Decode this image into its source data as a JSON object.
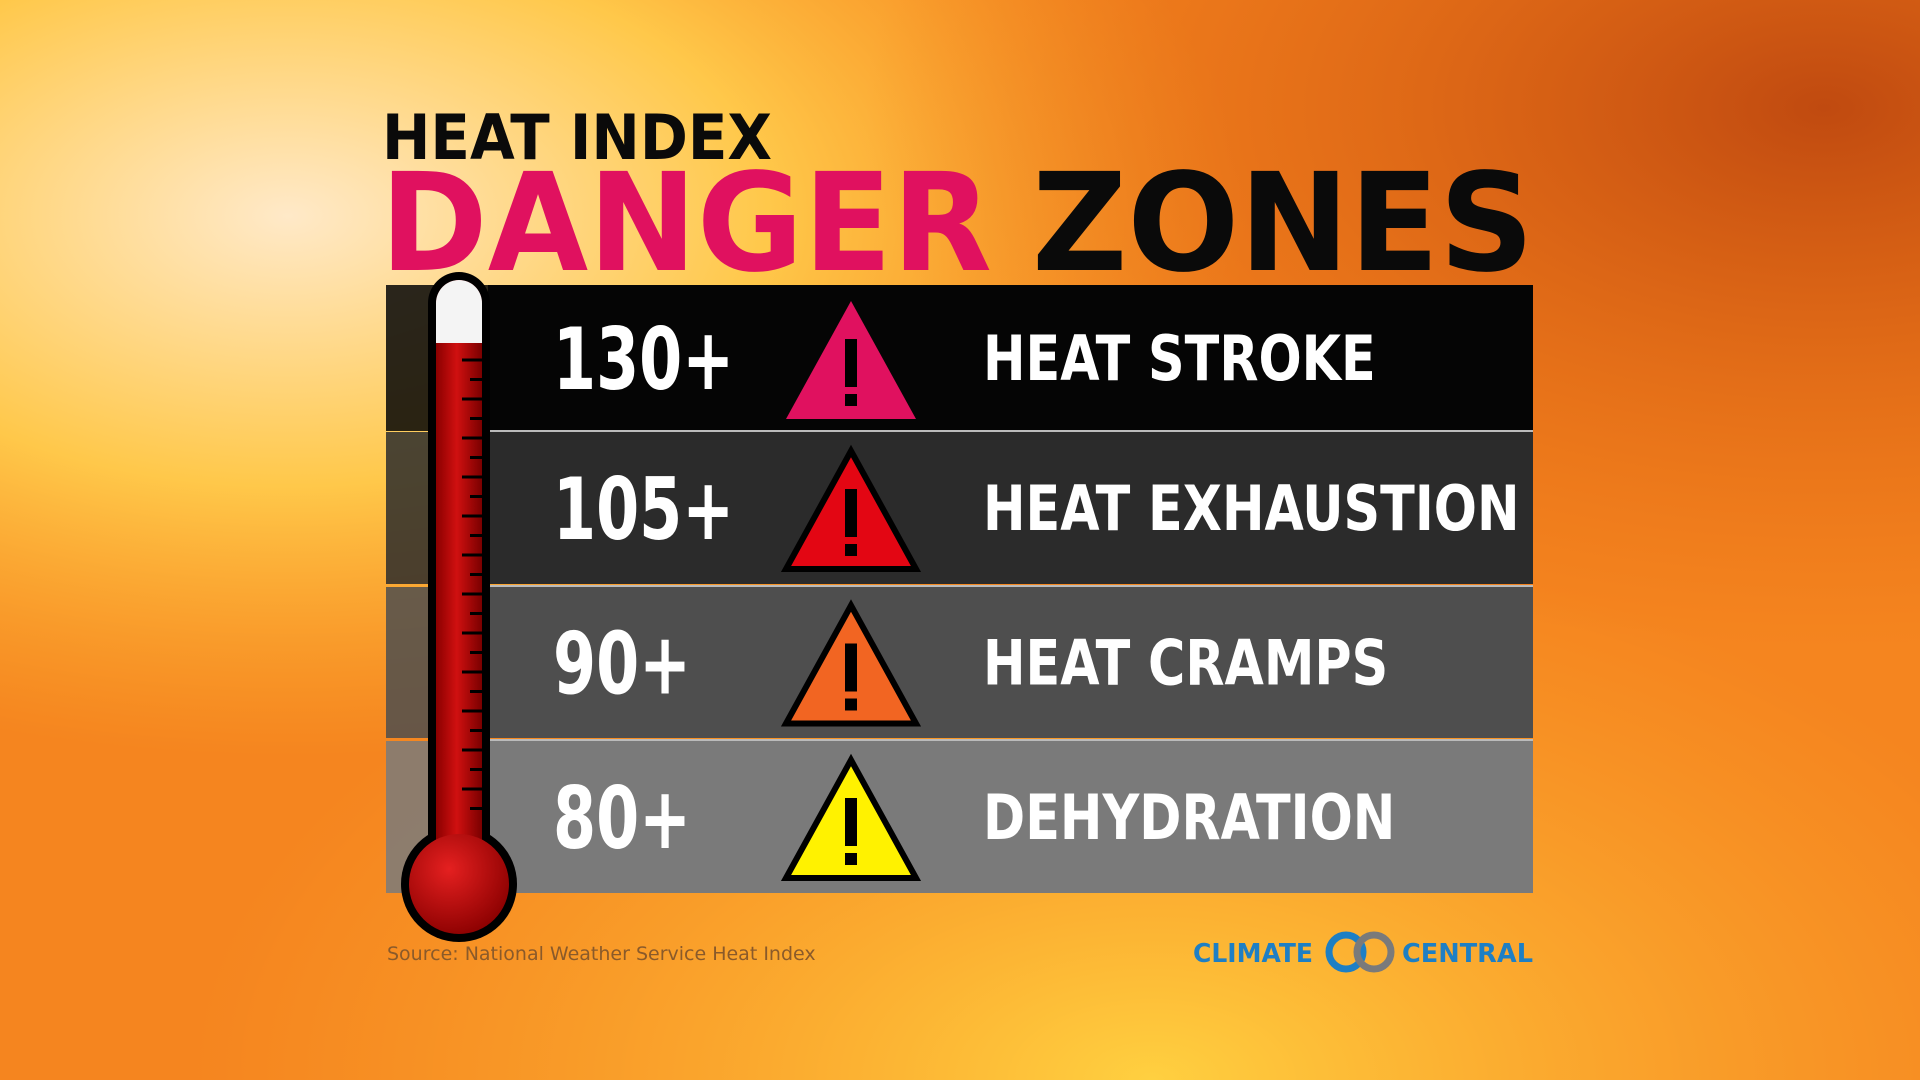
{
  "header": {
    "line1": "HEAT INDEX",
    "line2a": "DANGER",
    "line2b": "ZONES"
  },
  "rows": [
    {
      "threshold": "130+",
      "label": "HEAT STROKE",
      "color": "#e0115f",
      "band": "#050505"
    },
    {
      "threshold": "105+",
      "label": "HEAT EXHAUSTION",
      "color": "#e30613",
      "band": "#2b2b2b"
    },
    {
      "threshold": "90+",
      "label": "HEAT CRAMPS",
      "color": "#f26522",
      "band": "#4e4e4e"
    },
    {
      "threshold": "80+",
      "label": "DEHYDRATION",
      "color": "#fff200",
      "band": "#7a7a7a"
    }
  ],
  "source": "Source: National Weather Service Heat Index",
  "logo": {
    "left": "CLIMATE",
    "right": "CENTRAL"
  }
}
